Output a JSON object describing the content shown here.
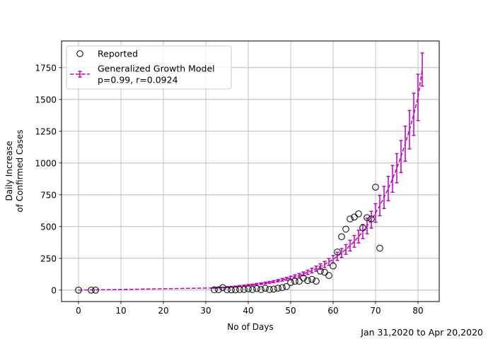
{
  "chart_data": {
    "type": "scatter",
    "title": "",
    "xlabel": "No of Days",
    "ylabel_lines": [
      "Daily Increase",
      "of Confirmed Cases"
    ],
    "caption": "Jan 31,2020 to Apr 20,2020",
    "xlim": [
      -4,
      85
    ],
    "ylim": [
      -90,
      1960
    ],
    "xticks": [
      0,
      10,
      20,
      30,
      40,
      50,
      60,
      70,
      80
    ],
    "yticks": [
      0,
      250,
      500,
      750,
      1000,
      1250,
      1500,
      1750
    ],
    "grid": true,
    "legend_position": "top-left",
    "legend": {
      "reported": "Reported",
      "model_line1": "Generalized Growth Model",
      "model_line2": "p=0.99, r=0.0924"
    },
    "colors": {
      "reported": "#000000",
      "model": "#c000c0",
      "grid": "#b0b0b0"
    },
    "series": [
      {
        "name": "Reported",
        "style": "open-circle",
        "points": [
          [
            0,
            0
          ],
          [
            3,
            0
          ],
          [
            4,
            0
          ],
          [
            32,
            3
          ],
          [
            33,
            3
          ],
          [
            34,
            20
          ],
          [
            35,
            3
          ],
          [
            36,
            2
          ],
          [
            37,
            2
          ],
          [
            38,
            5
          ],
          [
            39,
            5
          ],
          [
            40,
            10
          ],
          [
            41,
            5
          ],
          [
            42,
            12
          ],
          [
            43,
            5
          ],
          [
            44,
            15
          ],
          [
            45,
            5
          ],
          [
            46,
            8
          ],
          [
            47,
            15
          ],
          [
            48,
            20
          ],
          [
            49,
            28
          ],
          [
            50,
            60
          ],
          [
            51,
            70
          ],
          [
            52,
            70
          ],
          [
            53,
            95
          ],
          [
            54,
            75
          ],
          [
            55,
            85
          ],
          [
            56,
            70
          ],
          [
            57,
            150
          ],
          [
            58,
            140
          ],
          [
            59,
            115
          ],
          [
            60,
            190
          ],
          [
            61,
            300
          ],
          [
            62,
            420
          ],
          [
            63,
            480
          ],
          [
            64,
            560
          ],
          [
            65,
            575
          ],
          [
            66,
            600
          ],
          [
            67,
            490
          ],
          [
            68,
            570
          ],
          [
            69,
            560
          ],
          [
            70,
            810
          ],
          [
            71,
            330
          ]
        ]
      },
      {
        "name": "Generalized Growth Model",
        "style": "dashed-errorbar",
        "points": [
          [
            0,
            0,
            0
          ],
          [
            32,
            17,
            2
          ],
          [
            33,
            19,
            2
          ],
          [
            34,
            21,
            2
          ],
          [
            35,
            24,
            3
          ],
          [
            36,
            26,
            3
          ],
          [
            37,
            29,
            3
          ],
          [
            38,
            32,
            4
          ],
          [
            39,
            35,
            4
          ],
          [
            40,
            39,
            5
          ],
          [
            41,
            42,
            5
          ],
          [
            42,
            47,
            6
          ],
          [
            43,
            51,
            6
          ],
          [
            44,
            56,
            7
          ],
          [
            45,
            61,
            7
          ],
          [
            46,
            67,
            8
          ],
          [
            47,
            74,
            9
          ],
          [
            48,
            81,
            10
          ],
          [
            49,
            89,
            11
          ],
          [
            50,
            97,
            12
          ],
          [
            51,
            107,
            13
          ],
          [
            52,
            117,
            14
          ],
          [
            53,
            128,
            15
          ],
          [
            54,
            140,
            17
          ],
          [
            55,
            154,
            18
          ],
          [
            56,
            169,
            20
          ],
          [
            57,
            185,
            22
          ],
          [
            58,
            202,
            24
          ],
          [
            59,
            222,
            27
          ],
          [
            60,
            243,
            29
          ],
          [
            61,
            266,
            32
          ],
          [
            62,
            292,
            35
          ],
          [
            63,
            320,
            38
          ],
          [
            64,
            350,
            42
          ],
          [
            65,
            384,
            46
          ],
          [
            66,
            421,
            50
          ],
          [
            67,
            461,
            55
          ],
          [
            68,
            505,
            61
          ],
          [
            69,
            554,
            66
          ],
          [
            70,
            607,
            73
          ],
          [
            71,
            665,
            80
          ],
          [
            72,
            729,
            87
          ],
          [
            73,
            799,
            96
          ],
          [
            74,
            875,
            105
          ],
          [
            75,
            959,
            115
          ],
          [
            76,
            1051,
            126
          ],
          [
            77,
            1152,
            138
          ],
          [
            78,
            1262,
            151
          ],
          [
            79,
            1383,
            166
          ],
          [
            80,
            1516,
            182
          ],
          [
            81,
            1735,
            130
          ]
        ]
      }
    ]
  }
}
